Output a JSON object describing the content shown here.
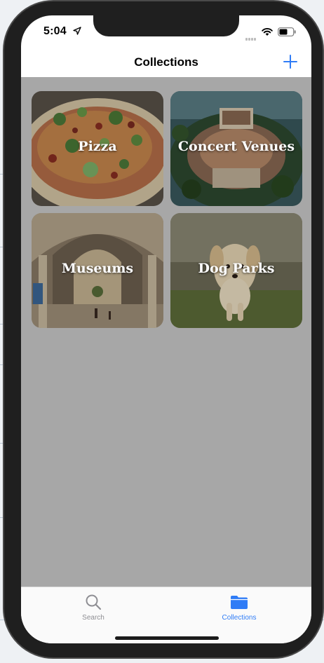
{
  "status_bar": {
    "time": "5:04",
    "icons": [
      "location-arrow-icon",
      "signal-icon",
      "wifi-icon",
      "battery-icon"
    ]
  },
  "navbar": {
    "title": "Collections",
    "add_icon": "plus-icon",
    "accent": "#2F7CF6"
  },
  "collections": [
    {
      "label": "Pizza",
      "image": "pizza-photo"
    },
    {
      "label": "Concert Venues",
      "image": "concert-venue-photo"
    },
    {
      "label": "Museums",
      "image": "museum-hall-photo"
    },
    {
      "label": "Dog Parks",
      "image": "puppy-photo"
    }
  ],
  "tab_bar": {
    "tabs": [
      {
        "label": "Search",
        "icon": "magnifier-icon",
        "selected": false
      },
      {
        "label": "Collections",
        "icon": "folder-icon",
        "selected": true
      }
    ],
    "selected_color": "#2F7CF6",
    "unselected_color": "#8E8E93"
  },
  "overlay_color": "#A7A7A7"
}
